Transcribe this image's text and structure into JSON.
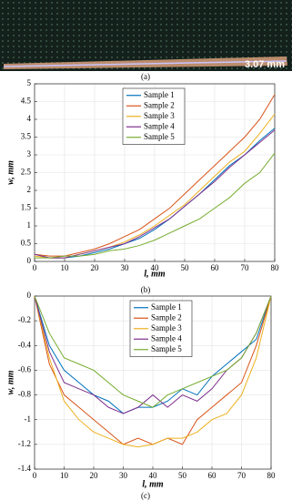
{
  "photo": {
    "label": "3.07 mm",
    "caption": "(a)"
  },
  "chart_data": [
    {
      "type": "line",
      "caption": "(b)",
      "xlabel": "l, mm",
      "ylabel": "w, mm",
      "x": [
        0,
        5,
        10,
        15,
        20,
        25,
        30,
        35,
        40,
        45,
        50,
        55,
        60,
        65,
        70,
        75,
        80
      ],
      "xlim": [
        0,
        80
      ],
      "xticks": [
        0,
        10,
        20,
        30,
        40,
        50,
        60,
        70,
        80
      ],
      "ylim": [
        0,
        5
      ],
      "yticks": [
        0,
        0.5,
        1,
        1.5,
        2,
        2.5,
        3,
        3.5,
        4,
        4.5,
        5
      ],
      "grid": true,
      "series": [
        {
          "name": "Sample 1",
          "color": "#0072BD",
          "values": [
            0.2,
            0.1,
            0.1,
            0.15,
            0.25,
            0.35,
            0.5,
            0.65,
            0.9,
            1.2,
            1.55,
            1.9,
            2.3,
            2.7,
            3.0,
            3.4,
            3.75
          ]
        },
        {
          "name": "Sample 2",
          "color": "#D95319",
          "values": [
            0.2,
            0.15,
            0.15,
            0.25,
            0.35,
            0.5,
            0.7,
            0.9,
            1.2,
            1.5,
            1.9,
            2.3,
            2.7,
            3.1,
            3.5,
            4.0,
            4.7
          ]
        },
        {
          "name": "Sample 3",
          "color": "#EDB120",
          "values": [
            0.15,
            0.1,
            0.1,
            0.2,
            0.3,
            0.4,
            0.55,
            0.75,
            1.0,
            1.3,
            1.6,
            2.0,
            2.4,
            2.8,
            3.1,
            3.6,
            4.15
          ]
        },
        {
          "name": "Sample 4",
          "color": "#7E2F8E",
          "values": [
            0.2,
            0.1,
            0.1,
            0.2,
            0.3,
            0.4,
            0.5,
            0.7,
            0.95,
            1.2,
            1.55,
            1.9,
            2.25,
            2.65,
            3.0,
            3.35,
            3.7
          ]
        },
        {
          "name": "Sample 5",
          "color": "#77AC30",
          "values": [
            0.1,
            0.1,
            0.15,
            0.15,
            0.2,
            0.3,
            0.35,
            0.45,
            0.6,
            0.8,
            1.0,
            1.2,
            1.5,
            1.8,
            2.2,
            2.5,
            3.05
          ]
        }
      ]
    },
    {
      "type": "line",
      "caption": "(c)",
      "xlabel": "l, mm",
      "ylabel": "w, mm",
      "x": [
        0,
        5,
        10,
        15,
        20,
        25,
        30,
        35,
        40,
        45,
        50,
        55,
        60,
        65,
        70,
        75,
        80
      ],
      "xlim": [
        0,
        80
      ],
      "xticks": [
        0,
        10,
        20,
        30,
        40,
        50,
        60,
        70,
        80
      ],
      "ylim": [
        -1.4,
        0
      ],
      "yticks": [
        -1.4,
        -1.2,
        -1,
        -0.8,
        -0.6,
        -0.4,
        -0.2,
        0
      ],
      "grid": true,
      "series": [
        {
          "name": "Sample 1",
          "color": "#0072BD",
          "values": [
            0,
            -0.4,
            -0.6,
            -0.7,
            -0.8,
            -0.85,
            -0.95,
            -0.9,
            -0.9,
            -0.85,
            -0.75,
            -0.8,
            -0.65,
            -0.55,
            -0.45,
            -0.35,
            0
          ]
        },
        {
          "name": "Sample 2",
          "color": "#D95319",
          "values": [
            0,
            -0.55,
            -0.8,
            -0.9,
            -1.0,
            -1.1,
            -1.2,
            -1.15,
            -1.2,
            -1.15,
            -1.2,
            -1.0,
            -0.9,
            -0.8,
            -0.7,
            -0.4,
            0
          ]
        },
        {
          "name": "Sample 3",
          "color": "#EDB120",
          "values": [
            0,
            -0.5,
            -0.85,
            -1.0,
            -1.1,
            -1.15,
            -1.2,
            -1.22,
            -1.2,
            -1.15,
            -1.15,
            -1.1,
            -1.0,
            -0.95,
            -0.8,
            -0.5,
            0
          ]
        },
        {
          "name": "Sample 4",
          "color": "#7E2F8E",
          "values": [
            0,
            -0.45,
            -0.7,
            -0.75,
            -0.8,
            -0.9,
            -0.95,
            -0.9,
            -0.8,
            -0.9,
            -0.8,
            -0.85,
            -0.75,
            -0.6,
            -0.5,
            -0.3,
            0
          ]
        },
        {
          "name": "Sample 5",
          "color": "#77AC30",
          "values": [
            0,
            -0.3,
            -0.5,
            -0.55,
            -0.6,
            -0.7,
            -0.8,
            -0.85,
            -0.9,
            -0.8,
            -0.75,
            -0.7,
            -0.65,
            -0.6,
            -0.5,
            -0.3,
            0
          ]
        }
      ]
    }
  ]
}
